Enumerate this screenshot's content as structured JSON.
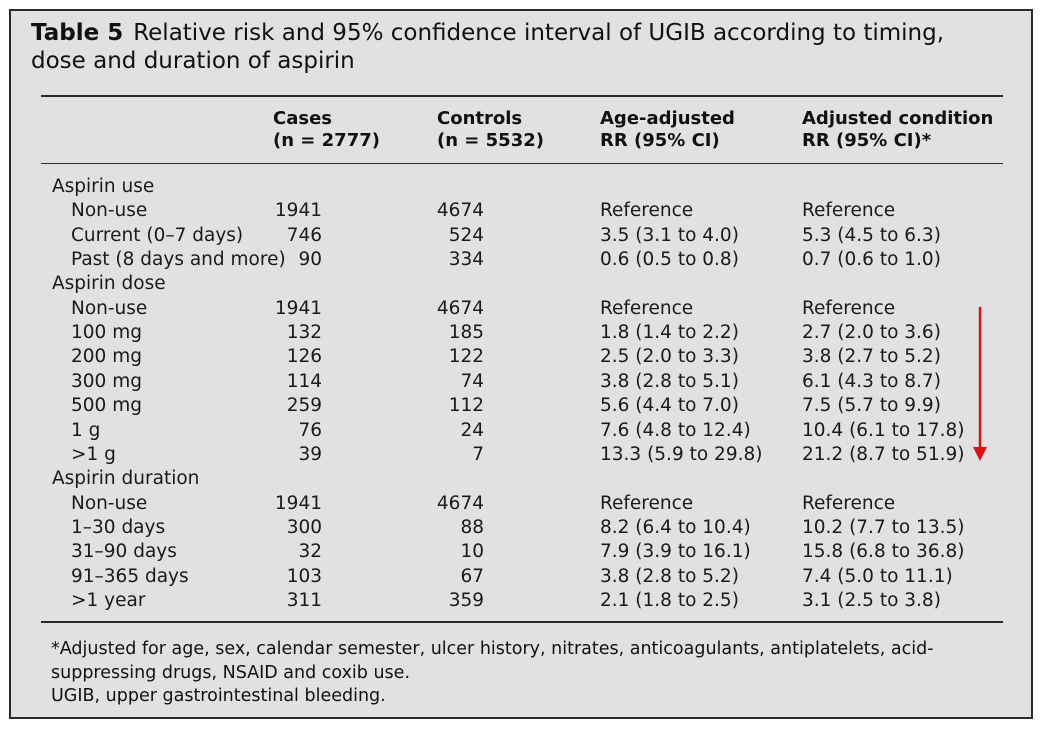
{
  "caption": {
    "label": "Table 5",
    "text": "Relative risk and 95% confidence interval of UGIB according to timing, dose and duration of aspirin"
  },
  "columns": {
    "cases": {
      "line1": "Cases",
      "line2": "(n = 2777)"
    },
    "controls": {
      "line1": "Controls",
      "line2": "(n = 5532)"
    },
    "age_adjusted": {
      "line1": "Age-adjusted",
      "line2": "RR (95% CI)"
    },
    "adjusted_condition": {
      "line1": "Adjusted condition",
      "line2": "RR (95% CI)*"
    }
  },
  "rows": [
    {
      "label": "Aspirin use",
      "section": true,
      "cases": "",
      "controls": "",
      "age": "",
      "adj": ""
    },
    {
      "label": "Non-use",
      "cases": "1941",
      "controls": "4674",
      "age": "Reference",
      "adj": "Reference"
    },
    {
      "label": "Current (0–7 days)",
      "cases": "746",
      "controls": "524",
      "age": "3.5 (3.1 to 4.0)",
      "adj": "5.3 (4.5 to 6.3)"
    },
    {
      "label": "Past (8 days and more)",
      "cases": "90",
      "controls": "334",
      "age": "0.6 (0.5 to 0.8)",
      "adj": "0.7 (0.6 to 1.0)"
    },
    {
      "label": "Aspirin dose",
      "section": true,
      "cases": "",
      "controls": "",
      "age": "",
      "adj": ""
    },
    {
      "label": "Non-use",
      "cases": "1941",
      "controls": "4674",
      "age": "Reference",
      "adj": "Reference"
    },
    {
      "label": "100 mg",
      "cases": "132",
      "controls": "185",
      "age": "1.8 (1.4 to 2.2)",
      "adj": "2.7 (2.0 to 3.6)"
    },
    {
      "label": "200 mg",
      "cases": "126",
      "controls": "122",
      "age": "2.5 (2.0 to 3.3)",
      "adj": "3.8 (2.7 to 5.2)"
    },
    {
      "label": "300 mg",
      "cases": "114",
      "controls": "74",
      "age": "3.8 (2.8 to 5.1)",
      "adj": "6.1 (4.3 to 8.7)"
    },
    {
      "label": "500 mg",
      "cases": "259",
      "controls": "112",
      "age": "5.6 (4.4 to 7.0)",
      "adj": "7.5 (5.7 to 9.9)"
    },
    {
      "label": "1 g",
      "cases": "76",
      "controls": "24",
      "age": "7.6 (4.8 to 12.4)",
      "adj": "10.4 (6.1 to 17.8)"
    },
    {
      "label": ">1 g",
      "cases": "39",
      "controls": "7",
      "age": "13.3 (5.9 to 29.8)",
      "adj": "21.2 (8.7 to 51.9)"
    },
    {
      "label": "Aspirin duration",
      "section": true,
      "cases": "",
      "controls": "",
      "age": "",
      "adj": ""
    },
    {
      "label": "Non-use",
      "cases": "1941",
      "controls": "4674",
      "age": "Reference",
      "adj": "Reference"
    },
    {
      "label": "1–30 days",
      "cases": "300",
      "controls": "88",
      "age": "8.2 (6.4 to 10.4)",
      "adj": "10.2 (7.7 to 13.5)"
    },
    {
      "label": "31–90 days",
      "cases": "32",
      "controls": "10",
      "age": "7.9 (3.9 to 16.1)",
      "adj": "15.8 (6.8 to 36.8)"
    },
    {
      "label": "91–365 days",
      "cases": "103",
      "controls": "67",
      "age": "3.8 (2.8 to 5.2)",
      "adj": "7.4 (5.0 to 11.1)"
    },
    {
      "label": ">1 year",
      "cases": "311",
      "controls": "359",
      "age": "2.1 (1.8 to 2.5)",
      "adj": "3.1 (2.5 to 3.8)"
    }
  ],
  "footnotes": [
    "*Adjusted for age, sex, calendar semester, ulcer history, nitrates, anticoagulants, antiplatelets, acid-suppressing drugs, NSAID and coxib use.",
    "UGIB, upper gastrointestinal bleeding."
  ],
  "colors": {
    "background": "#e1e1e1",
    "rule": "#2a2a2a",
    "annotation_arrow": "#e01010"
  }
}
